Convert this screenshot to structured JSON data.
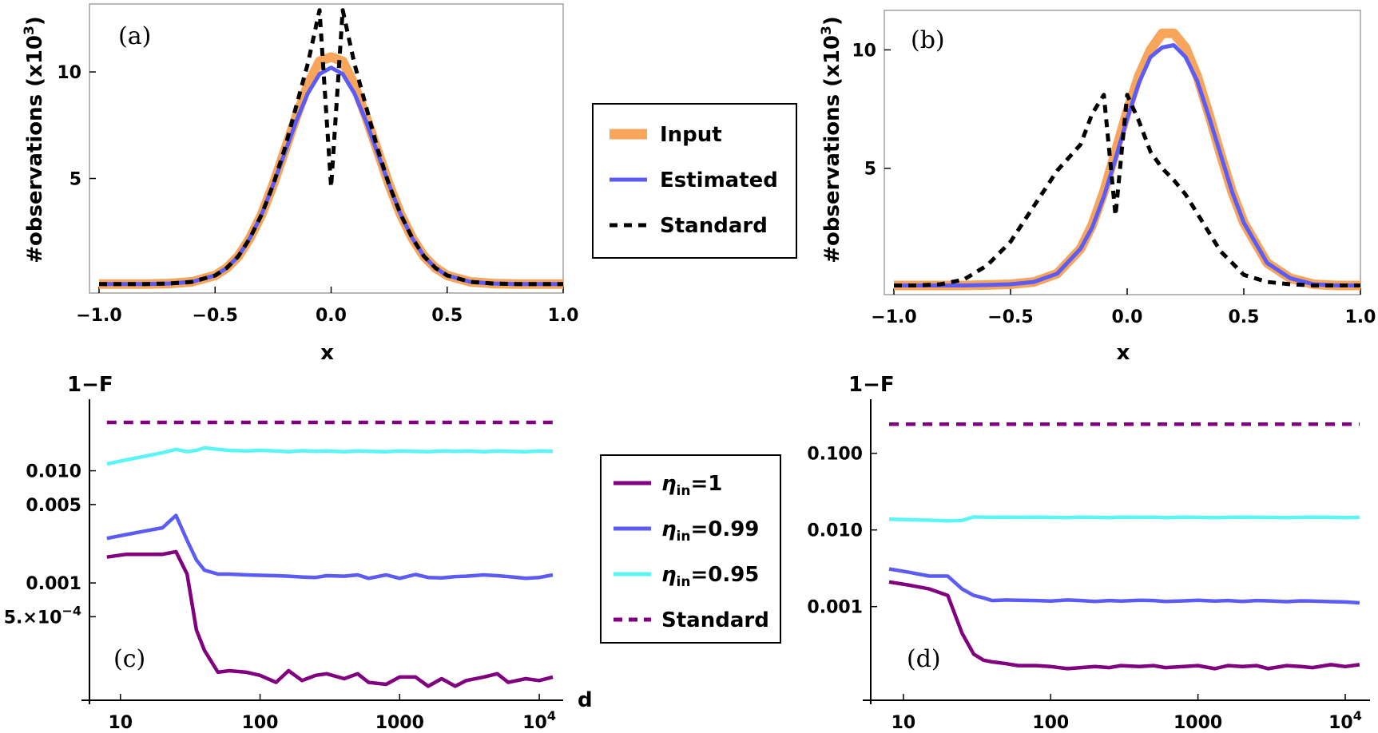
{
  "colors": {
    "input": "#f7a55b",
    "estimated": "#5b5bf5",
    "standard_top": "#000000",
    "eta1": "#800080",
    "eta099": "#5b5bf5",
    "eta095": "#5bf5f5",
    "standard_bottom": "#800080"
  },
  "legend_top": {
    "items": [
      "Input",
      "Estimated",
      "Standard"
    ]
  },
  "legend_bottom": {
    "items": [
      {
        "sym": "η",
        "sub": "in",
        "val": "=1"
      },
      {
        "sym": "η",
        "sub": "in",
        "val": "=0.99"
      },
      {
        "sym": "η",
        "sub": "in",
        "val": "=0.95"
      },
      {
        "sym": "",
        "sub": "",
        "val": "Standard"
      }
    ]
  },
  "chart_data": [
    {
      "type": "line",
      "panel_label": "(a)",
      "xlabel": "x",
      "ylabel_main": "#observations (x10",
      "ylabel_sup": "3",
      "ylabel_tail": ")",
      "xlim": [
        -1.0,
        1.0
      ],
      "ylim": [
        0,
        13
      ],
      "xticks": [
        "−1.0",
        "−0.5",
        "0.0",
        "0.5",
        "1.0"
      ],
      "xtick_values": [
        -1.0,
        -0.5,
        0.0,
        0.5,
        1.0
      ],
      "yticks": [
        "5",
        "10"
      ],
      "ytick_values": [
        5,
        10
      ],
      "x": [
        -1.0,
        -0.9,
        -0.8,
        -0.7,
        -0.6,
        -0.5,
        -0.45,
        -0.4,
        -0.35,
        -0.3,
        -0.25,
        -0.2,
        -0.15,
        -0.1,
        -0.05,
        0.0,
        0.05,
        0.1,
        0.15,
        0.2,
        0.25,
        0.3,
        0.35,
        0.4,
        0.45,
        0.5,
        0.6,
        0.7,
        0.8,
        0.9,
        1.0
      ],
      "series": [
        {
          "name": "Input",
          "values": [
            0.05,
            0.05,
            0.05,
            0.07,
            0.15,
            0.45,
            0.8,
            1.35,
            2.2,
            3.3,
            4.7,
            6.3,
            7.9,
            9.4,
            10.5,
            10.7,
            10.5,
            9.4,
            7.9,
            6.3,
            4.7,
            3.3,
            2.2,
            1.35,
            0.8,
            0.45,
            0.15,
            0.07,
            0.05,
            0.05,
            0.05
          ]
        },
        {
          "name": "Estimated",
          "values": [
            0.05,
            0.05,
            0.05,
            0.07,
            0.15,
            0.45,
            0.8,
            1.35,
            2.2,
            3.3,
            4.7,
            6.2,
            7.7,
            9.0,
            9.9,
            10.2,
            9.9,
            9.0,
            7.7,
            6.2,
            4.7,
            3.3,
            2.2,
            1.35,
            0.8,
            0.45,
            0.15,
            0.07,
            0.05,
            0.05,
            0.05
          ]
        },
        {
          "name": "Standard",
          "dashed": true,
          "values": [
            0.05,
            0.05,
            0.05,
            0.07,
            0.15,
            0.45,
            0.8,
            1.35,
            2.2,
            3.3,
            4.7,
            6.4,
            8.4,
            10.4,
            12.9,
            4.6,
            12.9,
            10.4,
            8.4,
            6.4,
            4.7,
            3.3,
            2.2,
            1.35,
            0.8,
            0.45,
            0.15,
            0.07,
            0.05,
            0.05,
            0.05
          ]
        }
      ]
    },
    {
      "type": "line",
      "panel_label": "(b)",
      "xlabel": "x",
      "ylabel_main": "#observations (x10",
      "ylabel_sup": "3",
      "ylabel_tail": ")",
      "xlim": [
        -1.0,
        1.0
      ],
      "ylim": [
        0,
        11.5
      ],
      "xticks": [
        "−1.0",
        "−0.5",
        "0.0",
        "0.5",
        "1.0"
      ],
      "xtick_values": [
        -1.0,
        -0.5,
        0.0,
        0.5,
        1.0
      ],
      "yticks": [
        "5",
        "10"
      ],
      "ytick_values": [
        5,
        10
      ],
      "x": [
        -1.0,
        -0.9,
        -0.8,
        -0.7,
        -0.6,
        -0.5,
        -0.4,
        -0.3,
        -0.2,
        -0.15,
        -0.1,
        -0.05,
        0.0,
        0.05,
        0.1,
        0.15,
        0.2,
        0.25,
        0.3,
        0.35,
        0.4,
        0.45,
        0.5,
        0.6,
        0.7,
        0.8,
        0.9,
        1.0
      ],
      "series": [
        {
          "name": "Input",
          "values": [
            0.05,
            0.05,
            0.05,
            0.05,
            0.07,
            0.1,
            0.2,
            0.55,
            1.6,
            2.6,
            4.0,
            5.7,
            7.4,
            8.9,
            10.0,
            10.7,
            10.7,
            10.1,
            8.9,
            7.3,
            5.6,
            4.0,
            2.7,
            1.0,
            0.35,
            0.1,
            0.05,
            0.05
          ]
        },
        {
          "name": "Estimated",
          "values": [
            0.05,
            0.05,
            0.05,
            0.05,
            0.07,
            0.1,
            0.2,
            0.55,
            1.6,
            2.5,
            3.8,
            5.4,
            7.1,
            8.6,
            9.7,
            10.1,
            10.2,
            9.7,
            8.7,
            7.2,
            5.6,
            4.0,
            2.7,
            1.0,
            0.35,
            0.1,
            0.05,
            0.05
          ]
        },
        {
          "name": "Standard",
          "dashed": true,
          "values": [
            0.05,
            0.05,
            0.1,
            0.3,
            0.9,
            1.9,
            3.4,
            4.9,
            6.0,
            7.3,
            8.1,
            3.0,
            8.1,
            7.0,
            5.7,
            5.0,
            4.5,
            3.9,
            3.1,
            2.3,
            1.5,
            1.0,
            0.5,
            0.2,
            0.1,
            0.05,
            0.05,
            0.05
          ]
        }
      ]
    },
    {
      "type": "line",
      "panel_label": "(c)",
      "xlabel": "d",
      "ylabel": "1−F",
      "xscale": "log",
      "yscale": "log",
      "xlim": [
        6,
        13000
      ],
      "ylim": [
        9e-05,
        0.04
      ],
      "xticks": [
        "10",
        "100",
        "1000",
        "10^4"
      ],
      "xtick_values": [
        10,
        100,
        1000,
        10000
      ],
      "yticks": [
        "0.010",
        "0.005",
        "0.001",
        "5.×10^−4"
      ],
      "ytick_values": [
        0.01,
        0.005,
        0.001,
        0.0005
      ],
      "x": [
        8,
        11,
        15,
        20,
        25,
        30,
        35,
        40,
        50,
        60,
        80,
        100,
        130,
        160,
        200,
        250,
        300,
        400,
        500,
        600,
        800,
        1000,
        1300,
        1600,
        2000,
        2500,
        3000,
        4000,
        5000,
        6000,
        8000,
        10000,
        12500
      ],
      "series": [
        {
          "name": "ηin=1",
          "values": [
            0.0017,
            0.0018,
            0.0018,
            0.0018,
            0.0019,
            0.0012,
            0.00038,
            0.00025,
            0.00016,
            0.000165,
            0.00016,
            0.00015,
            0.00013,
            0.000165,
            0.000135,
            0.00015,
            0.000155,
            0.00014,
            0.000155,
            0.00013,
            0.000125,
            0.000145,
            0.000145,
            0.00012,
            0.00014,
            0.00012,
            0.000135,
            0.000145,
            0.000155,
            0.00013,
            0.00014,
            0.000135,
            0.000145
          ]
        },
        {
          "name": "ηin=0.99",
          "values": [
            0.0025,
            0.0027,
            0.0029,
            0.0031,
            0.004,
            0.0024,
            0.0016,
            0.0013,
            0.0012,
            0.0012,
            0.00118,
            0.00117,
            0.00116,
            0.00115,
            0.00113,
            0.00112,
            0.00116,
            0.00115,
            0.00118,
            0.0011,
            0.00118,
            0.0011,
            0.00119,
            0.00112,
            0.00111,
            0.00114,
            0.00115,
            0.00118,
            0.00116,
            0.00114,
            0.0011,
            0.00112,
            0.00118
          ]
        },
        {
          "name": "ηin=0.95",
          "values": [
            0.0115,
            0.0125,
            0.0135,
            0.0145,
            0.0155,
            0.0148,
            0.0152,
            0.016,
            0.0155,
            0.0152,
            0.015,
            0.0152,
            0.015,
            0.0148,
            0.0151,
            0.0149,
            0.015,
            0.0148,
            0.015,
            0.0149,
            0.0148,
            0.015,
            0.0149,
            0.0148,
            0.015,
            0.0149,
            0.015,
            0.0148,
            0.015,
            0.0149,
            0.0148,
            0.015,
            0.0149
          ]
        },
        {
          "name": "Standard",
          "dashed": true,
          "values": [
            0.027,
            0.027,
            0.027,
            0.027,
            0.027,
            0.027,
            0.027,
            0.027,
            0.027,
            0.027,
            0.027,
            0.027,
            0.027,
            0.027,
            0.027,
            0.027,
            0.027,
            0.027,
            0.027,
            0.027,
            0.027,
            0.027,
            0.027,
            0.027,
            0.027,
            0.027,
            0.027,
            0.027,
            0.027,
            0.027,
            0.027,
            0.027,
            0.027
          ]
        }
      ]
    },
    {
      "type": "line",
      "panel_label": "(d)",
      "xlabel": "d",
      "ylabel": "1−F",
      "xscale": "log",
      "yscale": "log",
      "xlim": [
        6,
        13000
      ],
      "ylim": [
        6e-05,
        0.45
      ],
      "xticks": [
        "10",
        "100",
        "1000",
        "10^4"
      ],
      "xtick_values": [
        10,
        100,
        1000,
        10000
      ],
      "yticks": [
        "0.100",
        "0.010",
        "0.001"
      ],
      "ytick_values": [
        0.1,
        0.01,
        0.001
      ],
      "x": [
        8,
        11,
        15,
        20,
        25,
        30,
        35,
        40,
        50,
        60,
        80,
        100,
        130,
        160,
        200,
        250,
        300,
        400,
        500,
        600,
        800,
        1000,
        1300,
        1600,
        2000,
        2500,
        3000,
        4000,
        5000,
        6000,
        8000,
        10000,
        12500
      ],
      "series": [
        {
          "name": "ηin=1",
          "values": [
            0.0021,
            0.0019,
            0.0017,
            0.0014,
            0.00045,
            0.00024,
            0.0002,
            0.00019,
            0.00018,
            0.00017,
            0.00017,
            0.000165,
            0.000155,
            0.00016,
            0.000165,
            0.00016,
            0.00017,
            0.000165,
            0.00017,
            0.00016,
            0.000165,
            0.00017,
            0.000155,
            0.00017,
            0.000165,
            0.00017,
            0.000155,
            0.00017,
            0.000165,
            0.00016,
            0.000175,
            0.000165,
            0.000175
          ]
        },
        {
          "name": "ηin=0.99",
          "values": [
            0.0031,
            0.0028,
            0.0025,
            0.0025,
            0.0017,
            0.0014,
            0.0013,
            0.0012,
            0.00122,
            0.00121,
            0.0012,
            0.00118,
            0.00122,
            0.0012,
            0.00117,
            0.0012,
            0.00118,
            0.00121,
            0.0012,
            0.00117,
            0.00119,
            0.00121,
            0.00118,
            0.0012,
            0.00117,
            0.0012,
            0.00119,
            0.00116,
            0.00119,
            0.00118,
            0.00116,
            0.00115,
            0.00112
          ]
        },
        {
          "name": "ηin=0.95",
          "values": [
            0.0138,
            0.0136,
            0.0134,
            0.0131,
            0.0133,
            0.0148,
            0.0147,
            0.0146,
            0.0147,
            0.0146,
            0.0147,
            0.0146,
            0.0145,
            0.0147,
            0.0146,
            0.0145,
            0.0147,
            0.0146,
            0.0147,
            0.0145,
            0.0147,
            0.0146,
            0.0145,
            0.0146,
            0.0147,
            0.0146,
            0.0146,
            0.0145,
            0.0146,
            0.0147,
            0.0146,
            0.0145,
            0.0146
          ]
        },
        {
          "name": "Standard",
          "dashed": true,
          "values": [
            0.24,
            0.24,
            0.24,
            0.24,
            0.24,
            0.24,
            0.24,
            0.24,
            0.24,
            0.24,
            0.24,
            0.24,
            0.24,
            0.24,
            0.24,
            0.24,
            0.24,
            0.24,
            0.24,
            0.24,
            0.24,
            0.24,
            0.24,
            0.24,
            0.24,
            0.24,
            0.24,
            0.24,
            0.24,
            0.24,
            0.24,
            0.24,
            0.24
          ]
        }
      ]
    }
  ]
}
